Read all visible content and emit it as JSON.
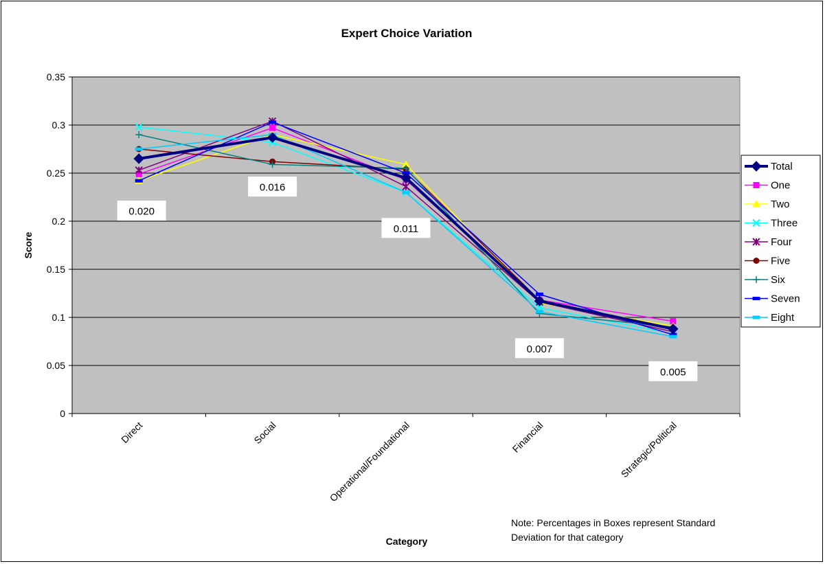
{
  "chart_data": {
    "type": "line",
    "title": "Expert Choice Variation",
    "xlabel": "Category",
    "ylabel": "Score",
    "ylim": [
      0,
      0.35
    ],
    "yticks": [
      0,
      0.05,
      0.1,
      0.15,
      0.2,
      0.25,
      0.3,
      0.35
    ],
    "ytick_labels": [
      "0",
      "0.05",
      "0.1",
      "0.15",
      "0.2",
      "0.25",
      "0.3",
      "0.35"
    ],
    "grid": true,
    "legend_position": "right",
    "categories": [
      "Direct",
      "Social",
      "Operational/Foundational",
      "Financial",
      "Strategic/Political"
    ],
    "series": [
      {
        "name": "Total",
        "color": "#000080",
        "marker": "diamond",
        "values": [
          0.265,
          0.287,
          0.245,
          0.117,
          0.088
        ]
      },
      {
        "name": "One",
        "color": "#FF00FF",
        "marker": "square",
        "values": [
          0.249,
          0.297,
          0.243,
          0.118,
          0.096
        ]
      },
      {
        "name": "Two",
        "color": "#FFFF00",
        "marker": "triangle",
        "values": [
          0.242,
          0.29,
          0.259,
          0.115,
          0.091
        ]
      },
      {
        "name": "Three",
        "color": "#00FFFF",
        "marker": "x",
        "values": [
          0.298,
          0.282,
          0.23,
          0.11,
          0.083
        ]
      },
      {
        "name": "Four",
        "color": "#800080",
        "marker": "star",
        "values": [
          0.253,
          0.304,
          0.236,
          0.116,
          0.085
        ]
      },
      {
        "name": "Five",
        "color": "#800000",
        "marker": "circle",
        "values": [
          0.275,
          0.262,
          0.254,
          0.118,
          0.088
        ]
      },
      {
        "name": "Six",
        "color": "#008080",
        "marker": "plus",
        "values": [
          0.29,
          0.259,
          0.255,
          0.104,
          0.09
        ]
      },
      {
        "name": "Seven",
        "color": "#0000FF",
        "marker": "dash",
        "values": [
          0.242,
          0.303,
          0.25,
          0.124,
          0.082
        ]
      },
      {
        "name": "Eight",
        "color": "#00CCFF",
        "marker": "dash",
        "values": [
          0.275,
          0.29,
          0.23,
          0.106,
          0.08
        ]
      }
    ],
    "annotations": [
      {
        "text": "0.020",
        "category": "Direct",
        "y": 0.211
      },
      {
        "text": "0.016",
        "category": "Social",
        "y": 0.236
      },
      {
        "text": "0.011",
        "category": "Operational/Foundational",
        "y": 0.193
      },
      {
        "text": "0.007",
        "category": "Financial",
        "y": 0.068
      },
      {
        "text": "0.005",
        "category": "Strategic/Political",
        "y": 0.044
      }
    ],
    "note_lines": [
      "Note: Percentages in Boxes represent Standard",
      "Deviation for that category"
    ],
    "plot_background": "#C0C0C0"
  }
}
